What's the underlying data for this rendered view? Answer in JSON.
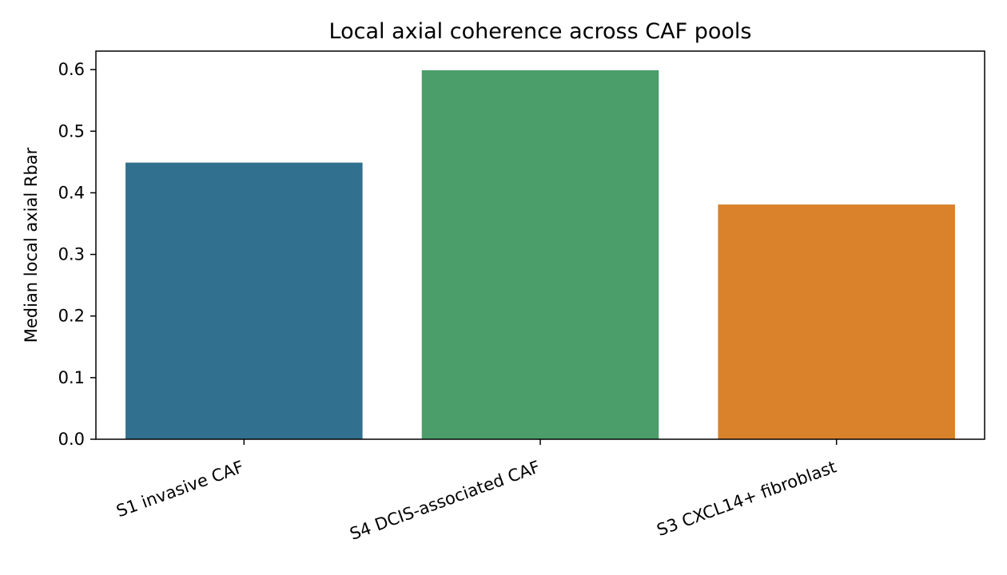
{
  "chart_data": {
    "type": "bar",
    "title": "Local axial coherence across CAF pools",
    "xlabel": "",
    "ylabel": "Median local axial Rbar",
    "categories": [
      "S1 invasive CAF",
      "S4 DCIS-associated CAF",
      "S3 CXCL14+ fibroblast"
    ],
    "values": [
      0.449,
      0.599,
      0.381
    ],
    "colors": [
      "#31708f",
      "#4b9e6a",
      "#d9822b"
    ],
    "ylim": [
      0,
      0.63
    ],
    "yticks": [
      0.0,
      0.1,
      0.2,
      0.3,
      0.4,
      0.5,
      0.6
    ],
    "ytick_labels": [
      "0.0",
      "0.1",
      "0.2",
      "0.3",
      "0.4",
      "0.5",
      "0.6"
    ],
    "grid": false,
    "legend": "none"
  }
}
